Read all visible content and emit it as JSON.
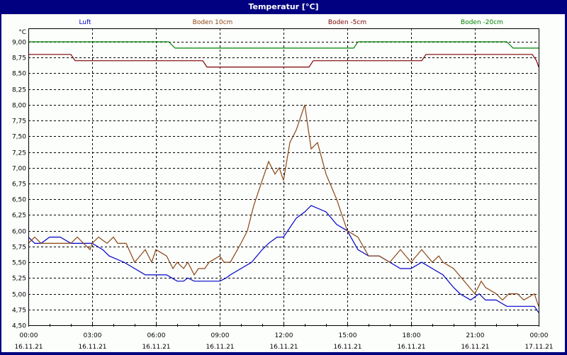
{
  "window": {
    "title": "Temperatur [°C]"
  },
  "chart_data": {
    "type": "line",
    "title": "Temperatur [°C]",
    "ylabel": "°C",
    "xlabel": "",
    "ylim": [
      4.5,
      9.0
    ],
    "y_ticks": [
      "9,00",
      "8,75",
      "8,50",
      "8,25",
      "8,00",
      "7,75",
      "7,50",
      "7,25",
      "7,00",
      "6,75",
      "6,50",
      "6,25",
      "6,00",
      "5,75",
      "5,50",
      "5,25",
      "5,00",
      "4,75",
      "4,50"
    ],
    "x_ticks": [
      {
        "time": "00:00",
        "date": "16.11.21"
      },
      {
        "time": "03:00",
        "date": "16.11.21"
      },
      {
        "time": "06:00",
        "date": "16.11.21"
      },
      {
        "time": "09:00",
        "date": "16.11.21"
      },
      {
        "time": "12:00",
        "date": "16.11.21"
      },
      {
        "time": "15:00",
        "date": "16.11.21"
      },
      {
        "time": "18:00",
        "date": "16.11.21"
      },
      {
        "time": "21:00",
        "date": "16.11.21"
      },
      {
        "time": "00:00",
        "date": "17.11.21"
      }
    ],
    "grid": true,
    "legend_position": "top",
    "x_unit": "hours since 16.11.21 00:00",
    "series": [
      {
        "name": "Luft",
        "color": "#0000c8",
        "x": [
          0,
          0.3,
          0.6,
          1.0,
          1.5,
          2.0,
          2.3,
          3.0,
          3.5,
          3.8,
          4.5,
          5.0,
          5.5,
          6.5,
          7.0,
          7.3,
          7.5,
          7.8,
          8.5,
          9.0,
          9.3,
          9.5,
          10.0,
          10.5,
          11.0,
          11.3,
          11.7,
          12.0,
          12.2,
          12.6,
          13.0,
          13.3,
          14.0,
          14.5,
          15.0,
          15.5,
          16.0,
          16.5,
          17.0,
          17.5,
          18.0,
          18.5,
          19.0,
          19.5,
          20.0,
          20.3,
          20.8,
          21.2,
          21.5,
          22.0,
          22.5,
          23.0,
          23.8,
          24.0
        ],
        "y": [
          5.9,
          5.8,
          5.8,
          5.9,
          5.9,
          5.8,
          5.8,
          5.8,
          5.7,
          5.6,
          5.5,
          5.4,
          5.3,
          5.3,
          5.2,
          5.2,
          5.25,
          5.2,
          5.2,
          5.2,
          5.25,
          5.3,
          5.4,
          5.5,
          5.7,
          5.8,
          5.9,
          5.9,
          6.0,
          6.2,
          6.3,
          6.4,
          6.3,
          6.1,
          6.0,
          5.7,
          5.6,
          5.6,
          5.5,
          5.4,
          5.4,
          5.5,
          5.4,
          5.3,
          5.1,
          5.0,
          4.9,
          5.0,
          4.9,
          4.9,
          4.8,
          4.8,
          4.8,
          4.7
        ]
      },
      {
        "name": "Boden 10cm",
        "color": "#8b4513",
        "x": [
          0,
          0.3,
          0.6,
          1.5,
          2.0,
          2.3,
          2.9,
          3.0,
          3.3,
          3.7,
          4.0,
          4.2,
          4.6,
          5.0,
          5.5,
          5.8,
          6.0,
          6.5,
          6.8,
          7.0,
          7.3,
          7.5,
          7.8,
          8.0,
          8.3,
          8.5,
          9.0,
          9.2,
          9.5,
          10.0,
          10.3,
          10.6,
          11.0,
          11.3,
          11.6,
          11.8,
          12.0,
          12.3,
          12.6,
          13.0,
          13.3,
          13.6,
          14.0,
          14.5,
          15.0,
          15.5,
          16.0,
          16.5,
          17.0,
          17.5,
          18.0,
          18.5,
          19.0,
          19.3,
          19.5,
          20.0,
          20.5,
          21.0,
          21.3,
          21.5,
          22.0,
          22.3,
          22.6,
          23.0,
          23.3,
          23.8,
          24.0
        ],
        "y": [
          5.8,
          5.9,
          5.8,
          5.8,
          5.8,
          5.9,
          5.7,
          5.8,
          5.9,
          5.8,
          5.9,
          5.8,
          5.8,
          5.5,
          5.7,
          5.5,
          5.7,
          5.6,
          5.4,
          5.5,
          5.4,
          5.5,
          5.3,
          5.4,
          5.4,
          5.5,
          5.6,
          5.5,
          5.5,
          5.8,
          6.0,
          6.4,
          6.8,
          7.1,
          6.9,
          7.0,
          6.8,
          7.4,
          7.6,
          8.0,
          7.3,
          7.4,
          6.9,
          6.5,
          6.0,
          5.9,
          5.6,
          5.6,
          5.5,
          5.7,
          5.5,
          5.7,
          5.5,
          5.6,
          5.5,
          5.4,
          5.2,
          5.0,
          5.2,
          5.1,
          5.0,
          4.9,
          5.0,
          5.0,
          4.9,
          5.0,
          4.8
        ]
      },
      {
        "name": "Boden -5cm",
        "color": "#800000",
        "x": [
          0,
          2.0,
          2.2,
          8.2,
          8.4,
          13.2,
          13.4,
          13.5,
          18.5,
          18.7,
          20.4,
          20.6,
          23.7,
          23.9,
          24.0
        ],
        "y": [
          8.8,
          8.8,
          8.7,
          8.7,
          8.6,
          8.6,
          8.7,
          8.7,
          8.7,
          8.8,
          8.8,
          8.8,
          8.8,
          8.7,
          8.6
        ]
      },
      {
        "name": "Boden -20cm",
        "color": "#008000",
        "x": [
          0,
          6.6,
          6.9,
          15.3,
          15.5,
          22.5,
          22.8,
          24.0
        ],
        "y": [
          9.0,
          9.0,
          8.9,
          8.9,
          9.0,
          9.0,
          8.9,
          8.9
        ]
      }
    ]
  }
}
